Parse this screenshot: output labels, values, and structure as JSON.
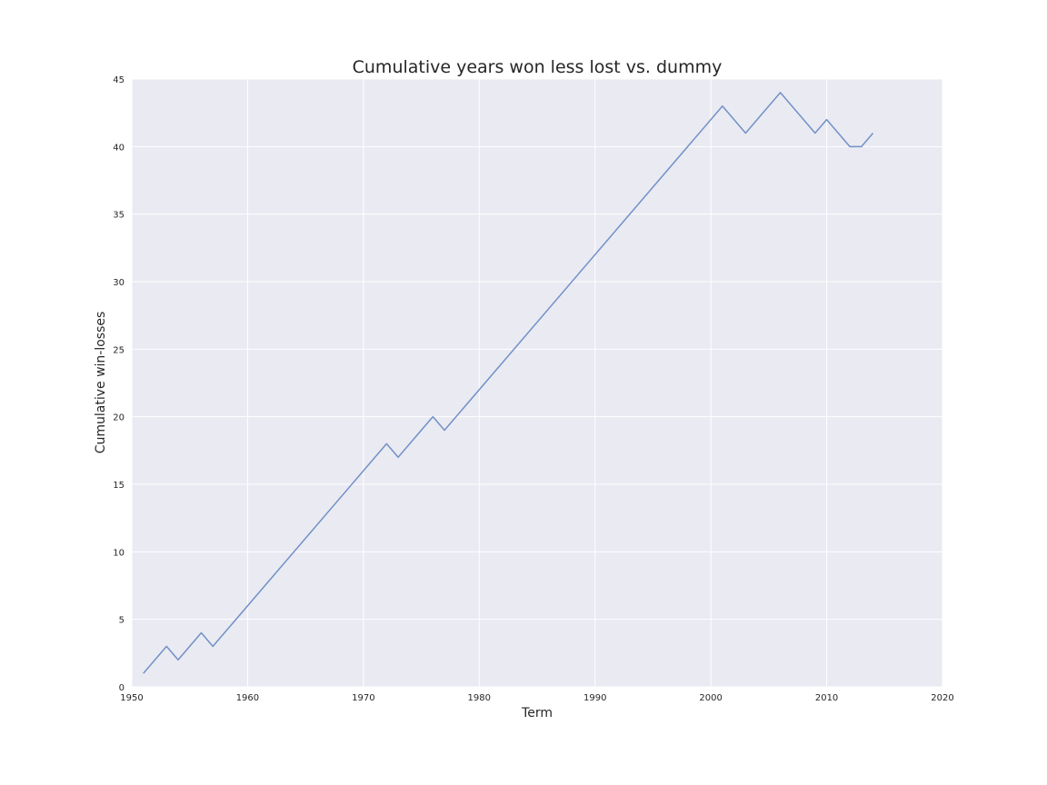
{
  "chart_data": {
    "type": "line",
    "title": "Cumulative years won less lost vs. dummy",
    "xlabel": "Term",
    "ylabel": "Cumulative win-losses",
    "xlim": [
      1950,
      2020
    ],
    "ylim": [
      0,
      45
    ],
    "x_ticks": [
      "1950",
      "1960",
      "1970",
      "1980",
      "1990",
      "2000",
      "2010",
      "2020"
    ],
    "y_ticks": [
      "0",
      "5",
      "10",
      "15",
      "20",
      "25",
      "30",
      "35",
      "40",
      "45"
    ],
    "grid": true,
    "legend": "none",
    "colors": {
      "line": "#7191c7",
      "plot_background": "#eaeaf2",
      "grid": "#ffffff"
    },
    "series": [
      {
        "x": [
          1951,
          1953,
          1954,
          1956,
          1957,
          1972,
          1973,
          1976,
          1977,
          2001,
          2003,
          2006,
          2009,
          2010,
          2012,
          2013,
          2014
        ],
        "y": [
          1,
          3,
          2,
          4,
          3,
          18,
          17,
          20,
          19,
          43,
          41,
          44,
          41,
          42,
          40,
          40,
          41
        ]
      }
    ]
  }
}
